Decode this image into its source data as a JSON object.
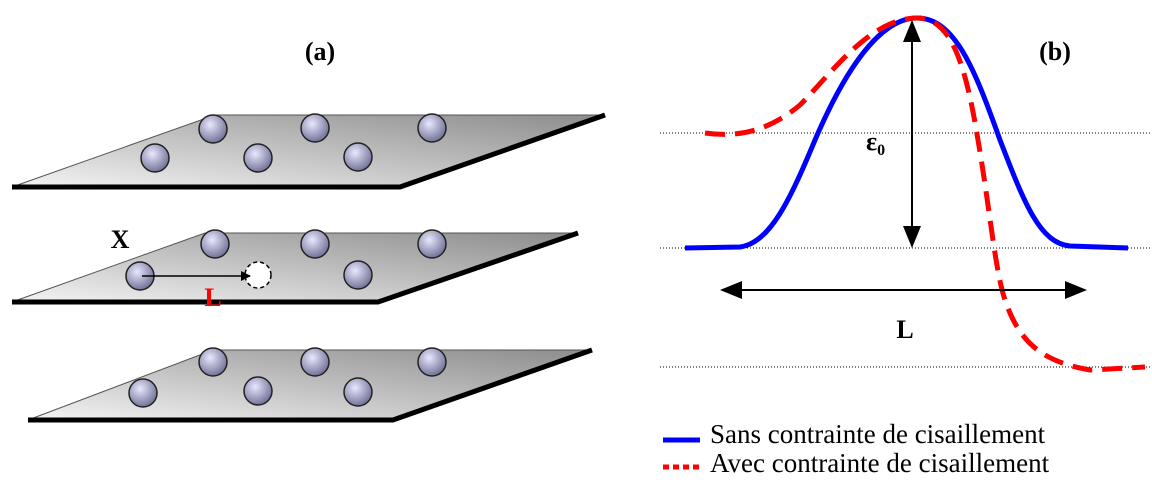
{
  "panel_a": {
    "label": "(a)",
    "displacement_label": "X",
    "displacement_length_label": "L",
    "displacement_length_color": "#ff0000"
  },
  "panel_b": {
    "label": "(b)",
    "amplitude_label": "ε",
    "amplitude_subscript": "0",
    "width_label": "L",
    "legend": [
      {
        "label": "Sans contrainte de cisaillement",
        "color": "#0000ff"
      },
      {
        "label": "Avec contrainte de cisaillement",
        "color": "#ff0000"
      }
    ]
  }
}
